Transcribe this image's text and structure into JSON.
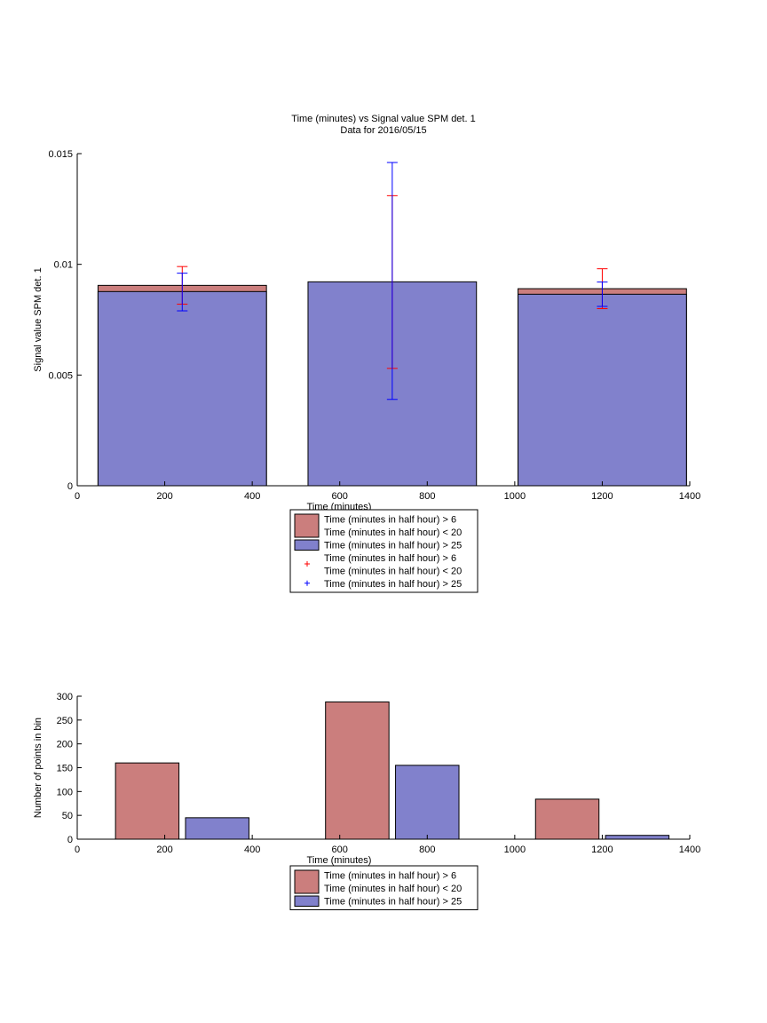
{
  "colors": {
    "red_fill": "#CB7E7D",
    "blue_fill": "#8181CC",
    "red_err": "#FF0000",
    "blue_err": "#0000FF",
    "axis": "#000000"
  },
  "chart_data": [
    {
      "type": "bar",
      "title": "Time (minutes) vs Signal value SPM det. 1",
      "subtitle": "Data for 2016/05/15",
      "xlabel": "Time (minutes)",
      "ylabel": "Signal value SPM det. 1",
      "xlim": [
        0,
        1400
      ],
      "ylim": [
        0,
        0.015
      ],
      "xticks": [
        0,
        200,
        400,
        600,
        800,
        1000,
        1200,
        1400
      ],
      "yticks": [
        0,
        0.005,
        0.01,
        0.015
      ],
      "ytick_labels": [
        "0",
        "0.005",
        "0.01",
        "0.015"
      ],
      "bar_width": 385,
      "categories": [
        240,
        720,
        1200
      ],
      "series": [
        {
          "name": "Time (minutes in half hour) > 6\nTime (minutes in half hour) < 20",
          "color_key": "red_fill",
          "values": [
            0.00905,
            0.0,
            0.0089
          ]
        },
        {
          "name": "Time (minutes in half hour) > 25",
          "color_key": "blue_fill",
          "values": [
            0.00877,
            0.00921,
            0.00865
          ]
        }
      ],
      "error_bars": [
        {
          "name": "Time (minutes in half hour) > 6\nTime (minutes in half hour) < 20",
          "color_key": "red_err",
          "x": [
            240,
            720,
            1200
          ],
          "low": [
            0.0082,
            0.0053,
            0.008
          ],
          "high": [
            0.0099,
            0.0131,
            0.0098
          ]
        },
        {
          "name": "Time (minutes in half hour) > 25",
          "color_key": "blue_err",
          "x": [
            240,
            720,
            1200
          ],
          "low": [
            0.0079,
            0.0039,
            0.0081
          ],
          "high": [
            0.0096,
            0.0146,
            0.0092
          ]
        }
      ],
      "legend": {
        "placement": "below",
        "entries": [
          {
            "kind": "patch",
            "color_key": "red_fill",
            "lines": [
              "Time (minutes in half hour) > 6",
              "Time (minutes in half hour) < 20"
            ]
          },
          {
            "kind": "patch",
            "color_key": "blue_fill",
            "lines": [
              "Time (minutes in half hour) > 25"
            ]
          },
          {
            "kind": "marker",
            "color_key": "red_err",
            "lines": [
              "Time (minutes in half hour) > 6",
              "Time (minutes in half hour) < 20"
            ]
          },
          {
            "kind": "marker",
            "color_key": "blue_err",
            "lines": [
              "Time (minutes in half hour) > 25"
            ]
          }
        ]
      },
      "grid": false
    },
    {
      "type": "bar",
      "title": "",
      "xlabel": "Time (minutes)",
      "ylabel": "Number of points in bin",
      "xlim": [
        0,
        1400
      ],
      "ylim": [
        0,
        300
      ],
      "xticks": [
        0,
        200,
        400,
        600,
        800,
        1000,
        1200,
        1400
      ],
      "yticks": [
        0,
        50,
        100,
        150,
        200,
        250,
        300
      ],
      "ytick_labels": [
        "0",
        "50",
        "100",
        "150",
        "200",
        "250",
        "300"
      ],
      "bar_width": 145,
      "series": [
        {
          "name": "Time (minutes in half hour) > 6\nTime (minutes in half hour) < 20",
          "color_key": "red_fill",
          "x": [
            160,
            640,
            1120
          ],
          "values": [
            160,
            288,
            84
          ]
        },
        {
          "name": "Time (minutes in half hour) > 25",
          "color_key": "blue_fill",
          "x": [
            320,
            800,
            1280
          ],
          "values": [
            45,
            155,
            8
          ]
        }
      ],
      "legend": {
        "placement": "below",
        "entries": [
          {
            "kind": "patch",
            "color_key": "red_fill",
            "lines": [
              "Time (minutes in half hour) > 6",
              "Time (minutes in half hour) < 20"
            ]
          },
          {
            "kind": "patch",
            "color_key": "blue_fill",
            "lines": [
              "Time (minutes in half hour) > 25"
            ]
          }
        ]
      },
      "grid": false
    }
  ]
}
